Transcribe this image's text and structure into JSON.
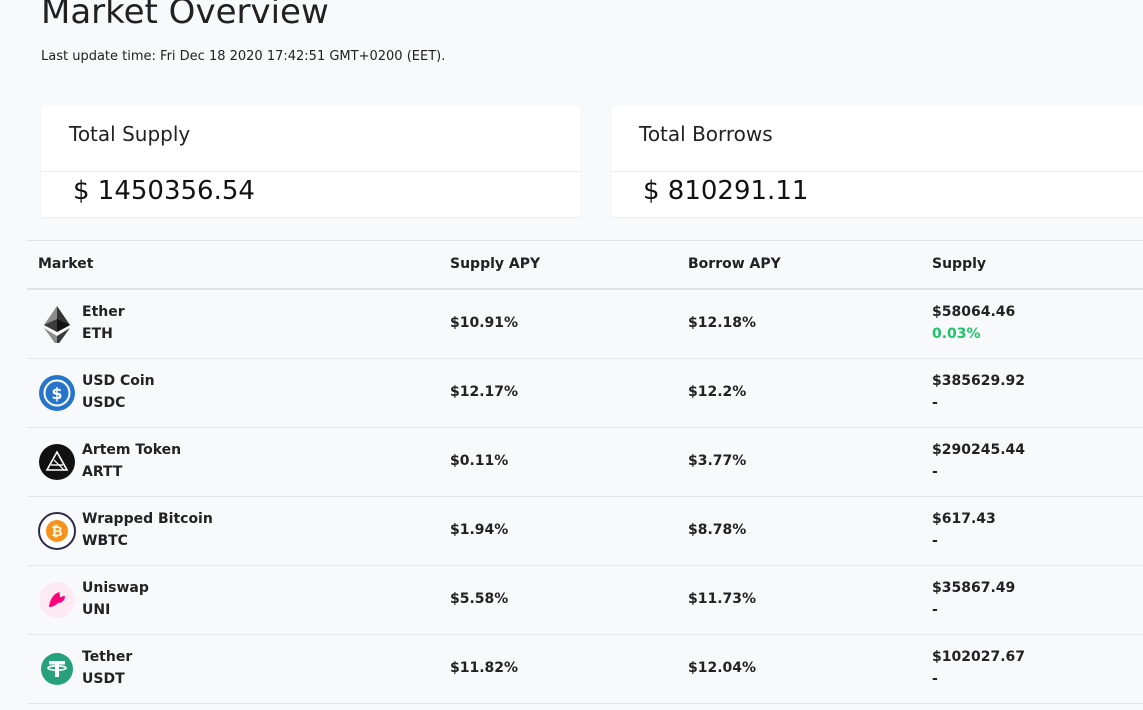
{
  "header": {
    "title": "Market Overview",
    "last_update": "Last update time: Fri Dec 18 2020 17:42:51 GMT+0200 (EET)."
  },
  "summary": {
    "total_supply": {
      "label": "Total Supply",
      "value": "$ 1450356.54"
    },
    "total_borrows": {
      "label": "Total Borrows",
      "value": "$ 810291.11"
    }
  },
  "table": {
    "columns": [
      "Market",
      "Supply APY",
      "Borrow APY",
      "Supply"
    ],
    "rows": [
      {
        "name": "Ether",
        "symbol": "ETH",
        "icon": "ether-icon",
        "supply_apy": "$10.91%",
        "borrow_apy": "$12.18%",
        "supply": "$58064.46",
        "supply_change": "0.03%"
      },
      {
        "name": "USD Coin",
        "symbol": "USDC",
        "icon": "usdc-icon",
        "supply_apy": "$12.17%",
        "borrow_apy": "$12.2%",
        "supply": "$385629.92",
        "supply_change": "-"
      },
      {
        "name": "Artem Token",
        "symbol": "ARTT",
        "icon": "artem-token-icon",
        "supply_apy": "$0.11%",
        "borrow_apy": "$3.77%",
        "supply": "$290245.44",
        "supply_change": "-"
      },
      {
        "name": "Wrapped Bitcoin",
        "symbol": "WBTC",
        "icon": "wbtc-icon",
        "supply_apy": "$1.94%",
        "borrow_apy": "$8.78%",
        "supply": "$617.43",
        "supply_change": "-"
      },
      {
        "name": "Uniswap",
        "symbol": "UNI",
        "icon": "uniswap-icon",
        "supply_apy": "$5.58%",
        "borrow_apy": "$11.73%",
        "supply": "$35867.49",
        "supply_change": "-"
      },
      {
        "name": "Tether",
        "symbol": "USDT",
        "icon": "tether-icon",
        "supply_apy": "$11.82%",
        "borrow_apy": "$12.04%",
        "supply": "$102027.67",
        "supply_change": "-"
      }
    ]
  },
  "colors": {
    "positive": "#1ec36a",
    "usdc": "#2775ca",
    "tether": "#26a17b",
    "bitcoin": "#f7931a",
    "uniswap": "#ff007a"
  }
}
